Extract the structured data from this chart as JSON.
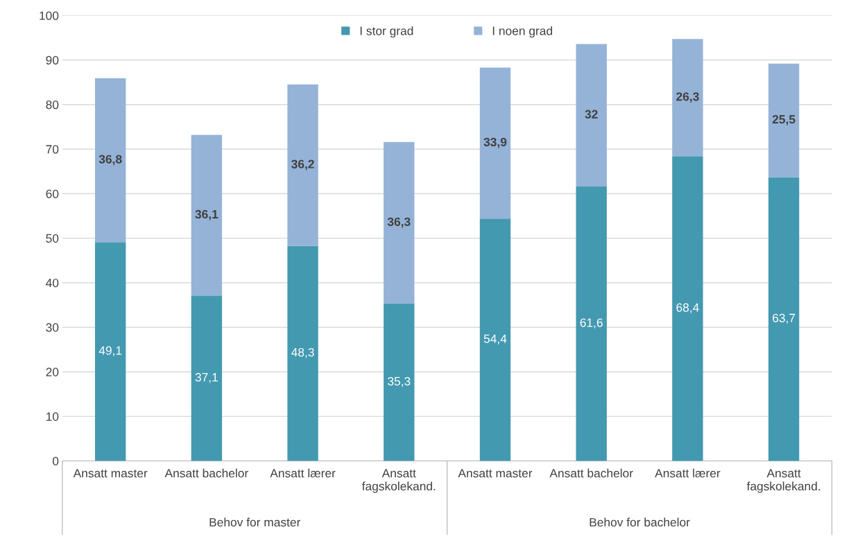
{
  "chart_data": {
    "type": "bar",
    "stacked": true,
    "categories": [
      "Ansatt master",
      "Ansatt bachelor",
      "Ansatt lærer",
      "Ansatt\nfagskolekand.",
      "Ansatt master",
      "Ansatt bachelor",
      "Ansatt lærer",
      "Ansatt\nfagskolekand."
    ],
    "series": [
      {
        "name": "I stor grad",
        "color": "#4399b0",
        "values": [
          49.1,
          37.1,
          48.3,
          35.3,
          54.4,
          61.6,
          68.4,
          63.7
        ],
        "value_labels": [
          "49,1",
          "37,1",
          "48,3",
          "35,3",
          "54,4",
          "61,6",
          "68,4",
          "63,7"
        ]
      },
      {
        "name": "I noen grad",
        "color": "#95b3d7",
        "values": [
          36.8,
          36.1,
          36.2,
          36.3,
          33.9,
          32,
          26.3,
          25.5
        ],
        "value_labels": [
          "36,8",
          "36,1",
          "36,2",
          "36,3",
          "33,9",
          "32",
          "26,3",
          "25,5"
        ]
      }
    ],
    "annotations": [
      "Behov for master",
      "Behov for bachelor"
    ],
    "ylim": [
      0,
      100
    ],
    "yticks": [
      0,
      10,
      20,
      30,
      40,
      50,
      60,
      70,
      80,
      90,
      100
    ],
    "grid": "y",
    "legend": "top"
  }
}
